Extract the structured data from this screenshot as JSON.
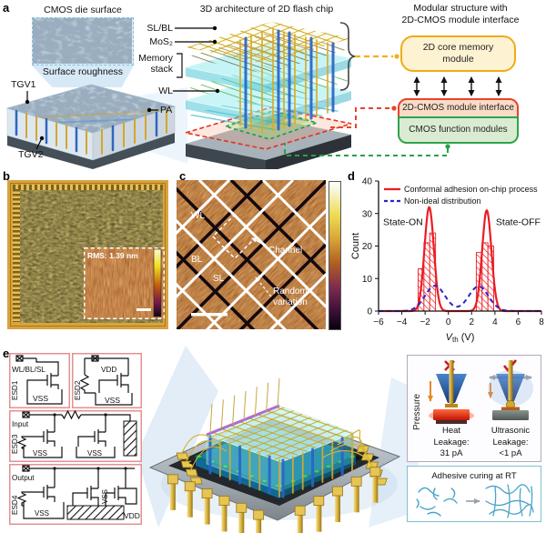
{
  "panels": {
    "a": "a",
    "b": "b",
    "c": "c",
    "d": "d",
    "e": "e"
  },
  "panel_a": {
    "left": {
      "title": "CMOS die surface",
      "caption": "Surface roughness",
      "tgv1": "TGV1",
      "tgv2": "TGV2",
      "pa": "PA"
    },
    "middle": {
      "title": "3D architecture of 2D flash chip",
      "sl_bl": "SL/BL",
      "mos2": "MoS₂",
      "memory_line1": "Memory",
      "memory_line2": "stack",
      "wl": "WL"
    },
    "right": {
      "title_line1": "Modular structure with",
      "title_line2": "2D-CMOS module interface",
      "memory_module": "2D core memory module",
      "interface_module": "2D-CMOS module interface",
      "cmos_module": "CMOS function modules"
    }
  },
  "panel_b": {
    "rms": "RMS: 1.39 nm"
  },
  "panel_c": {
    "wl": "WL",
    "bl": "BL",
    "sl": "SL",
    "channel": "Channel",
    "random_line1": "Random",
    "random_line2": "variation"
  },
  "chart_data": {
    "type": "bar",
    "title": "",
    "xlabel_parts": {
      "variable": "V",
      "subscript": "th",
      "unit": " (V)"
    },
    "ylabel": "Count",
    "xlim": [
      -6,
      8
    ],
    "ylim": [
      0,
      40
    ],
    "xticks": [
      -6,
      -4,
      -2,
      0,
      2,
      4,
      6,
      8
    ],
    "yticks": [
      0,
      10,
      20,
      30,
      40
    ],
    "grid": false,
    "legend_position": "top-left",
    "legend": [
      {
        "label": "Conformal adhesion on-chip process",
        "color": "#ec1c24",
        "dash": ""
      },
      {
        "label": "Non-ideal distribution",
        "color": "#2626cc",
        "dash": "4 3"
      }
    ],
    "annotations": [
      {
        "text": "State-ON",
        "x": -3.9,
        "y": 26.5
      },
      {
        "text": "State-OFF",
        "x": 6.0,
        "y": 26.5
      }
    ],
    "bar_width": 0.5,
    "bars": [
      {
        "x": -2.6,
        "count": 13
      },
      {
        "x": -2.1,
        "count": 21
      },
      {
        "x": -1.6,
        "count": 24
      },
      {
        "x": 2.4,
        "count": 18
      },
      {
        "x": 2.9,
        "count": 21
      },
      {
        "x": 3.4,
        "count": 20
      }
    ],
    "curves": [
      {
        "name": "Conformal adhesion on-chip process",
        "color": "#ec1c24",
        "width": 2.2,
        "dash": "",
        "gaussians": [
          {
            "amp": 32,
            "mu": -1.65,
            "sigma": 0.4
          },
          {
            "amp": 31,
            "mu": 3.3,
            "sigma": 0.4
          }
        ]
      },
      {
        "name": "Non-ideal distribution",
        "color": "#2626cc",
        "width": 2,
        "dash": "5 4",
        "gaussians": [
          {
            "amp": 7.8,
            "mu": -1.15,
            "sigma": 0.85
          },
          {
            "amp": 7.6,
            "mu": 2.6,
            "sigma": 0.85
          }
        ]
      }
    ]
  },
  "panel_e": {
    "esd1": {
      "name": "ESD1",
      "pad": "WL/BL/SL",
      "vss": "VSS"
    },
    "esd2": {
      "name": "ESD2",
      "pad": "VDD",
      "vss": "VSS"
    },
    "esd3": {
      "name": "ESD3",
      "pad": "Input",
      "vss1": "VSS",
      "vss2": "VSS"
    },
    "esd4": {
      "name": "ESD4",
      "pad": "Output",
      "vss1": "VSS",
      "vss2": "VSS",
      "vdd": "VDD"
    },
    "bonding": {
      "pressure": "Pressure",
      "heat": "Heat",
      "heat_leak_label": "Leakage:",
      "heat_leak_value": "31 pA",
      "ultrasonic": "Ultrasonic",
      "us_leak_label": "Leakage:",
      "us_leak_value": "<1 pA"
    },
    "adhesive": {
      "title": "Adhesive curing at RT"
    }
  }
}
